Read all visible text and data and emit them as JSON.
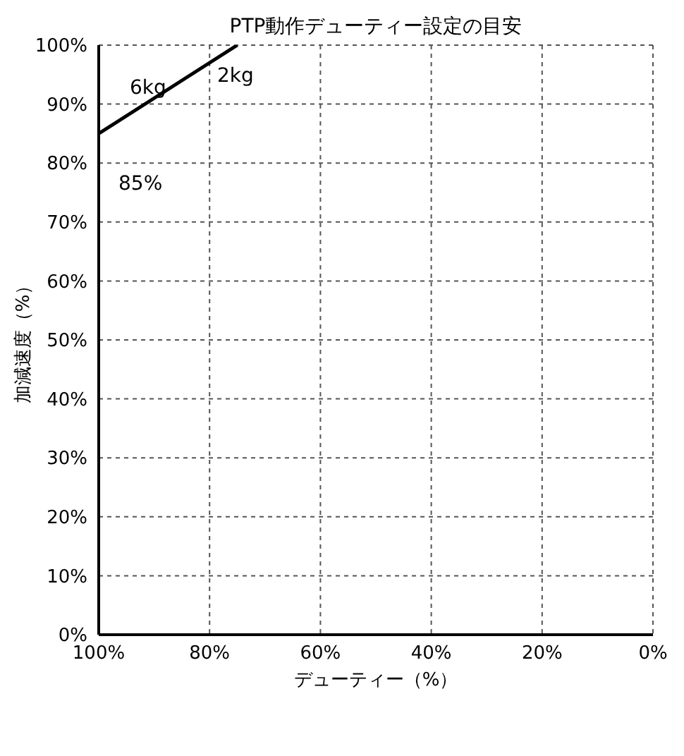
{
  "chart_data": {
    "type": "line",
    "title": "PTP動作デューティー設定の目安",
    "xlabel": "デューティー（%）",
    "ylabel": "加減速度（%）",
    "x": [
      100,
      75
    ],
    "series": [
      {
        "name": "6kg",
        "color": "#000000",
        "values": [
          85,
          100
        ]
      }
    ],
    "xlim": [
      100,
      0
    ],
    "ylim": [
      0,
      100
    ],
    "xticks": [
      {
        "value": 100,
        "label": "100%"
      },
      {
        "value": 80,
        "label": "80%"
      },
      {
        "value": 60,
        "label": "60%"
      },
      {
        "value": 40,
        "label": "40%"
      },
      {
        "value": 20,
        "label": "20%"
      },
      {
        "value": 0,
        "label": "0%"
      }
    ],
    "yticks": [
      {
        "value": 0,
        "label": "0%"
      },
      {
        "value": 10,
        "label": "10%"
      },
      {
        "value": 20,
        "label": "20%"
      },
      {
        "value": 30,
        "label": "30%"
      },
      {
        "value": 40,
        "label": "40%"
      },
      {
        "value": 50,
        "label": "50%"
      },
      {
        "value": 60,
        "label": "60%"
      },
      {
        "value": 70,
        "label": "70%"
      },
      {
        "value": 80,
        "label": "80%"
      },
      {
        "value": 90,
        "label": "90%"
      },
      {
        "value": 100,
        "label": "100%"
      }
    ],
    "annotations": [
      "2kg",
      {
        "text": "85%",
        "x": 100,
        "y": 85
      }
    ],
    "grid": true,
    "marker": "none",
    "line_style": "solid"
  }
}
